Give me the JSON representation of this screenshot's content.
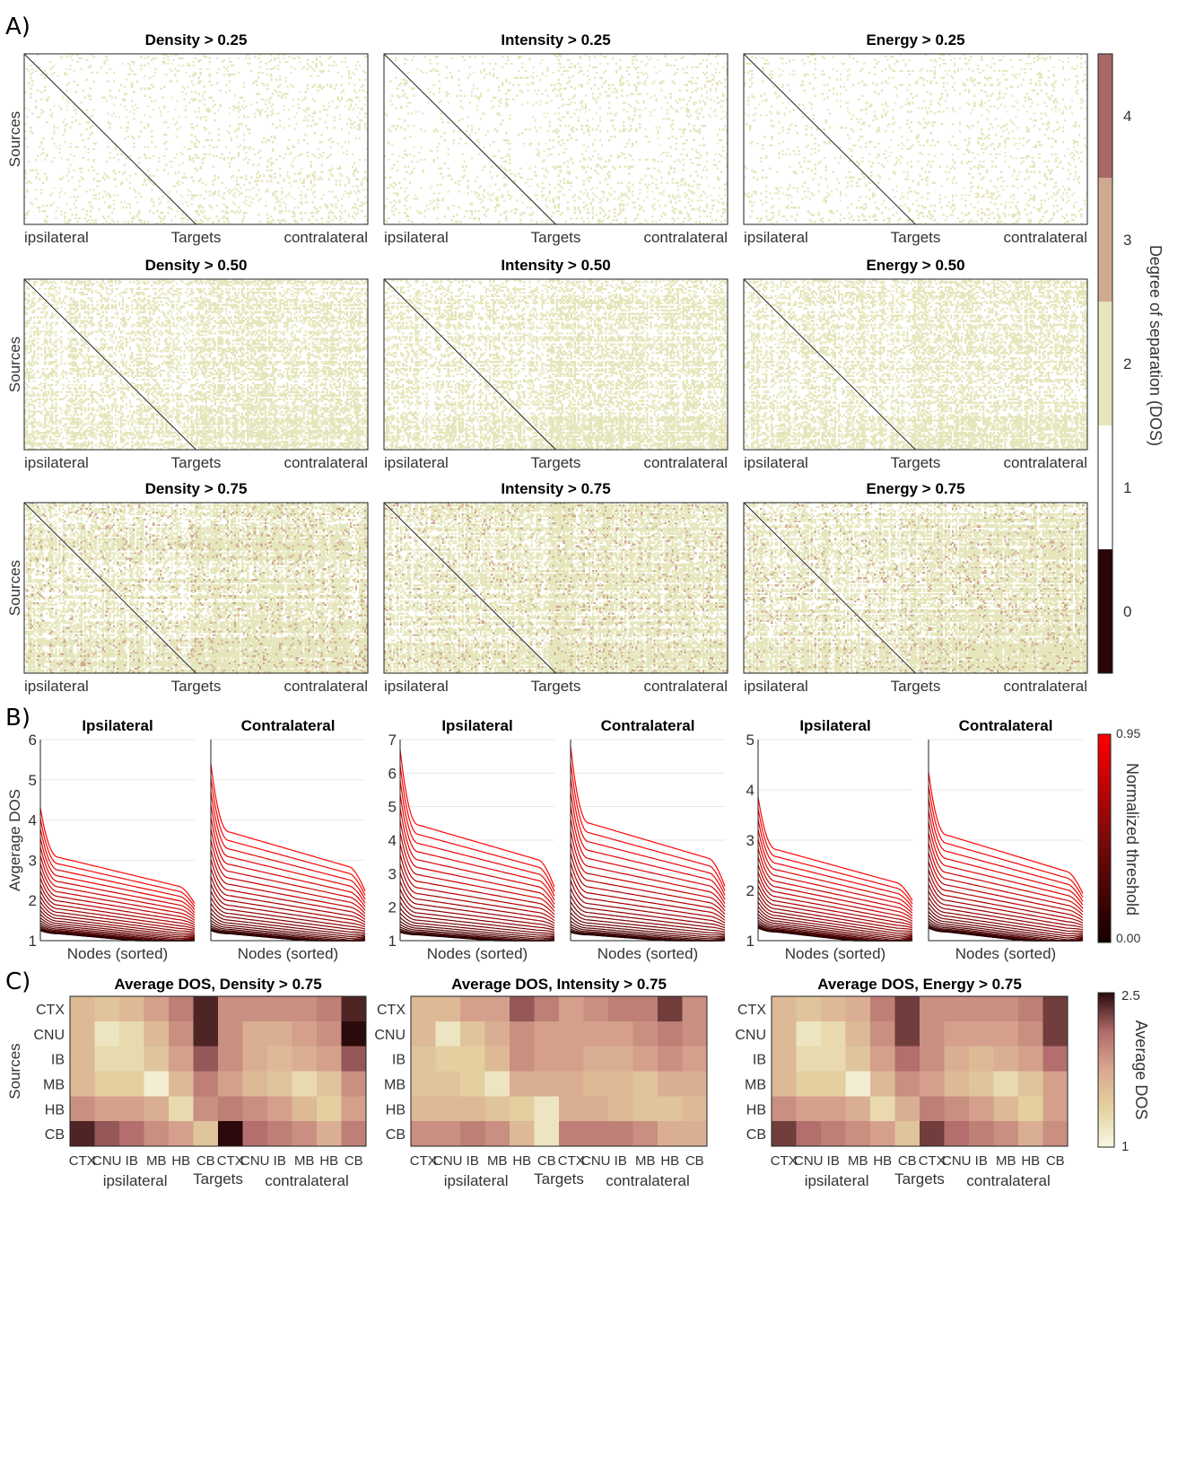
{
  "panel_labels": [
    "A)",
    "B)",
    "C)"
  ],
  "colors": {
    "white": "#ffffff",
    "dos0": "#2a0505",
    "dos2": "#e6e6bd",
    "dos3": "#cfa990",
    "dos4": "#a86868",
    "line_dark": "#140000",
    "line_bright": "#ff0000",
    "heat_low": "#f5f5dc",
    "heat_mid": "#c98f80",
    "heat_high": "#2a0a0a"
  },
  "chart_data": [
    {
      "type": "heatmap",
      "panel": "A",
      "titles": [
        [
          "Density > 0.25",
          "Intensity > 0.25",
          "Energy > 0.25"
        ],
        [
          "Density > 0.50",
          "Intensity > 0.50",
          "Energy > 0.50"
        ],
        [
          "Density > 0.75",
          "Intensity > 0.75",
          "Energy > 0.75"
        ]
      ],
      "xlabel": "Targets",
      "ylabel": "Sources",
      "xticks": [
        "ipsilateral",
        "contralateral"
      ],
      "value_fraction_dos2": [
        0.12,
        0.5,
        0.82
      ],
      "value_fraction_dos3": [
        0.0,
        0.0,
        0.14
      ],
      "colorbar": {
        "label": "Degree of separation (DOS)",
        "ticks": [
          "0",
          "1",
          "2",
          "3",
          "4"
        ],
        "range": [
          -0.5,
          4.5
        ],
        "categories": [
          0,
          1,
          2,
          3,
          4
        ]
      }
    },
    {
      "type": "line",
      "panel": "B",
      "titles": [
        "Ipsilateral",
        "Contralateral"
      ],
      "xlabel": "Nodes (sorted)",
      "ylabel": "Avgerage DOS",
      "groups": [
        {
          "ylim": [
            1,
            6
          ],
          "yticks": [
            "1",
            "2",
            "3",
            "4",
            "5",
            "6"
          ],
          "ipsi_max": 4.3,
          "contra_max": 5.4
        },
        {
          "ylim": [
            1,
            7
          ],
          "yticks": [
            "1",
            "2",
            "3",
            "4",
            "5",
            "6",
            "7"
          ],
          "ipsi_max": 6.7,
          "contra_max": 6.8
        },
        {
          "ylim": [
            1,
            5
          ],
          "yticks": [
            "1",
            "2",
            "3",
            "4",
            "5"
          ],
          "ipsi_max": 3.85,
          "contra_max": 4.35
        }
      ],
      "colorbar": {
        "label": "Normalized threshold",
        "ticks": [
          "0.95",
          "0.00"
        ],
        "range": [
          0.0,
          0.95
        ]
      }
    },
    {
      "type": "heatmap",
      "panel": "C",
      "titles": [
        "Average DOS, Density > 0.75",
        "Average DOS, Intensity > 0.75",
        "Average DOS, Energy > 0.75"
      ],
      "xlabel": "Targets",
      "ylabel": "Sources",
      "rows": [
        "CTX",
        "CNU",
        "IB",
        "MB",
        "HB",
        "CB"
      ],
      "cols": [
        "CTX",
        "CNU",
        "IB",
        "MB",
        "HB",
        "CB",
        "CTX",
        "CNU",
        "IB",
        "MB",
        "HB",
        "CB"
      ],
      "xgroups": [
        "ipsilateral",
        "contralateral"
      ],
      "values": [
        [
          [
            1.6,
            1.5,
            1.6,
            1.8,
            2.0,
            2.4,
            1.9,
            1.9,
            1.9,
            1.9,
            2.0,
            2.4
          ],
          [
            1.6,
            1.2,
            1.3,
            1.6,
            1.9,
            2.4,
            1.9,
            1.7,
            1.7,
            1.8,
            1.9,
            2.5
          ],
          [
            1.6,
            1.3,
            1.3,
            1.5,
            1.8,
            2.2,
            1.9,
            1.7,
            1.6,
            1.7,
            1.8,
            2.2
          ],
          [
            1.6,
            1.4,
            1.4,
            1.1,
            1.6,
            2.0,
            1.8,
            1.6,
            1.5,
            1.3,
            1.5,
            1.9
          ],
          [
            1.9,
            1.8,
            1.8,
            1.7,
            1.3,
            1.9,
            2.0,
            1.9,
            1.8,
            1.6,
            1.4,
            1.8
          ],
          [
            2.4,
            2.2,
            2.1,
            1.9,
            1.8,
            1.5,
            2.5,
            2.1,
            2.0,
            1.9,
            1.7,
            2.0
          ]
        ],
        [
          [
            1.6,
            1.6,
            1.8,
            1.8,
            2.2,
            2.0,
            1.8,
            1.9,
            2.0,
            2.0,
            2.3,
            1.9
          ],
          [
            1.6,
            1.2,
            1.5,
            1.7,
            1.9,
            1.8,
            1.8,
            1.8,
            1.8,
            1.9,
            2.0,
            1.9
          ],
          [
            1.5,
            1.4,
            1.4,
            1.6,
            1.9,
            1.8,
            1.8,
            1.7,
            1.7,
            1.8,
            1.9,
            1.8
          ],
          [
            1.5,
            1.5,
            1.4,
            1.2,
            1.7,
            1.7,
            1.7,
            1.6,
            1.6,
            1.5,
            1.7,
            1.7
          ],
          [
            1.6,
            1.6,
            1.6,
            1.5,
            1.4,
            1.2,
            1.7,
            1.7,
            1.6,
            1.5,
            1.5,
            1.6
          ],
          [
            1.9,
            1.9,
            2.0,
            1.9,
            1.6,
            1.2,
            2.0,
            2.0,
            2.0,
            1.9,
            1.7,
            1.7
          ]
        ],
        [
          [
            1.6,
            1.5,
            1.6,
            1.7,
            2.0,
            2.3,
            1.9,
            1.9,
            1.9,
            1.9,
            2.0,
            2.3
          ],
          [
            1.6,
            1.2,
            1.3,
            1.6,
            1.9,
            2.3,
            1.9,
            1.8,
            1.8,
            1.8,
            1.9,
            2.3
          ],
          [
            1.6,
            1.3,
            1.3,
            1.5,
            1.8,
            2.1,
            1.9,
            1.7,
            1.6,
            1.7,
            1.8,
            2.1
          ],
          [
            1.6,
            1.4,
            1.4,
            1.1,
            1.6,
            1.9,
            1.8,
            1.6,
            1.5,
            1.3,
            1.5,
            1.8
          ],
          [
            1.9,
            1.8,
            1.8,
            1.7,
            1.3,
            1.7,
            2.0,
            1.9,
            1.8,
            1.6,
            1.4,
            1.8
          ],
          [
            2.3,
            2.1,
            2.0,
            1.9,
            1.8,
            1.5,
            2.3,
            2.1,
            2.0,
            1.9,
            1.7,
            1.9
          ]
        ]
      ],
      "colorbar": {
        "label": "Average DOS",
        "ticks": [
          "2.5",
          "1"
        ],
        "range": [
          1,
          2.5
        ]
      }
    }
  ]
}
